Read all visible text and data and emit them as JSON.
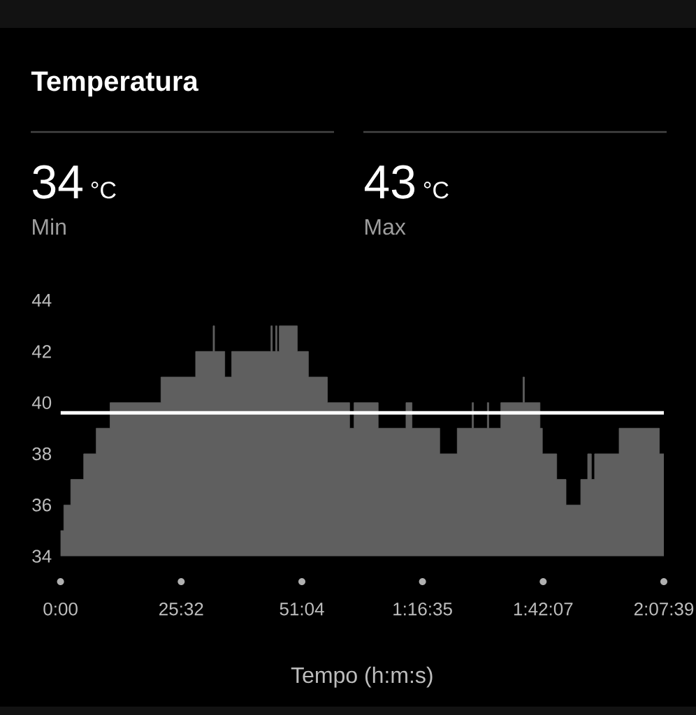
{
  "chart_data": {
    "type": "area",
    "title": "Temperatura",
    "xlabel": "Tempo (h:m:s)",
    "annotations": [
      "34",
      "°C",
      "Min",
      "43",
      "°C",
      "Max"
    ],
    "x": [
      0,
      42,
      42,
      130,
      130,
      294,
      294,
      453,
      453,
      629,
      629,
      1275,
      1275,
      1715,
      1715,
      1937,
      1937,
      1955,
      1955,
      2085,
      2085,
      2173,
      2173,
      2671,
      2671,
      2689,
      2689,
      2730,
      2730,
      2748,
      2748,
      2777,
      2777,
      3006,
      3006,
      3147,
      3147,
      3388,
      3388,
      3670,
      3670,
      3726,
      3726,
      4033,
      4033,
      4385,
      4385,
      4462,
      4462,
      4814,
      4814,
      5036,
      5036,
      5225,
      5225,
      5243,
      5243,
      5418,
      5418,
      5436,
      5436,
      5589,
      5589,
      5871,
      5871,
      5889,
      5889,
      6087,
      6087,
      6117,
      6117,
      6299,
      6299,
      6417,
      6417,
      6604,
      6604,
      6692,
      6692,
      6739,
      6739,
      6780,
      6780,
      7091,
      7091,
      7602,
      7602,
      7659
    ],
    "values": [
      35,
      35,
      36,
      36,
      37,
      37,
      38,
      38,
      39,
      39,
      40,
      40,
      41,
      41,
      42,
      42,
      43,
      43,
      42,
      42,
      41,
      41,
      42,
      42,
      43,
      43,
      42,
      42,
      43,
      43,
      42,
      42,
      43,
      43,
      42,
      42,
      41,
      41,
      40,
      40,
      39,
      39,
      40,
      40,
      39,
      39,
      40,
      40,
      39,
      39,
      38,
      38,
      39,
      39,
      40,
      40,
      39,
      39,
      40,
      40,
      39,
      39,
      40,
      40,
      41,
      41,
      40,
      40,
      39,
      39,
      38,
      38,
      37,
      37,
      36,
      36,
      37,
      37,
      38,
      38,
      37,
      37,
      38,
      38,
      39,
      39,
      38,
      38
    ],
    "color": "#5f5f5f",
    "xlim": [
      0,
      7659
    ],
    "ylim": [
      34,
      44
    ],
    "xticks": [
      {
        "value": 0,
        "label": "0:00"
      },
      {
        "value": 1532,
        "label": "25:32"
      },
      {
        "value": 3064,
        "label": "51:04"
      },
      {
        "value": 4595,
        "label": "1:16:35"
      },
      {
        "value": 6127,
        "label": "1:42:07"
      },
      {
        "value": 7659,
        "label": "2:07:39"
      }
    ],
    "yticks": [
      34,
      36,
      38,
      40,
      42,
      44
    ],
    "ref_lines": [
      {
        "axis": "y",
        "value": 39.6,
        "color": "#ffffff"
      }
    ]
  }
}
